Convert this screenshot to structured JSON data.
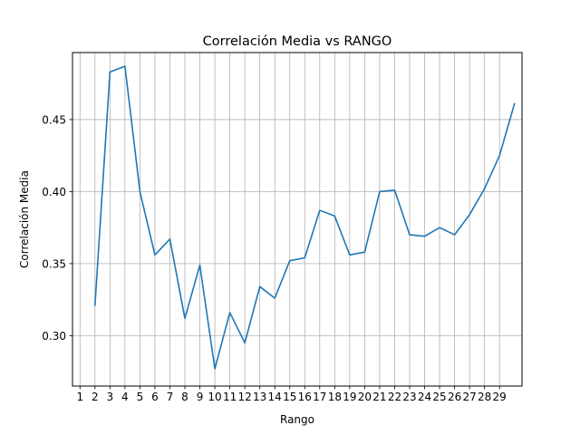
{
  "chart_data": {
    "type": "line",
    "title": "Correlación Media vs RANGO",
    "xlabel": "Rango",
    "ylabel": "Correlación Media",
    "x_ticks": [
      1,
      2,
      3,
      4,
      5,
      6,
      7,
      8,
      9,
      10,
      11,
      12,
      13,
      14,
      15,
      16,
      17,
      18,
      19,
      20,
      21,
      22,
      23,
      24,
      25,
      26,
      27,
      28,
      29
    ],
    "y_ticks": [
      0.3,
      0.35,
      0.4,
      0.45
    ],
    "y_tick_labels": [
      "0.30",
      "0.35",
      "0.40",
      "0.45"
    ],
    "xlim": [
      0.5,
      30.5
    ],
    "ylim": [
      0.265,
      0.4965
    ],
    "grid": "vertical-and-horizontal",
    "series": [
      {
        "color": "#1f77b4",
        "x": [
          2,
          3,
          4,
          5,
          6,
          7,
          8,
          9,
          10,
          11,
          12,
          13,
          14,
          15,
          16,
          17,
          18,
          19,
          20,
          21,
          22,
          23,
          24,
          25,
          26,
          27,
          28,
          29,
          30
        ],
        "y": [
          0.321,
          0.483,
          0.487,
          0.4,
          0.356,
          0.367,
          0.312,
          0.349,
          0.277,
          0.316,
          0.295,
          0.334,
          0.326,
          0.352,
          0.354,
          0.387,
          0.383,
          0.356,
          0.358,
          0.4,
          0.401,
          0.37,
          0.369,
          0.375,
          0.37,
          0.384,
          0.402,
          0.425,
          0.461
        ]
      }
    ]
  }
}
